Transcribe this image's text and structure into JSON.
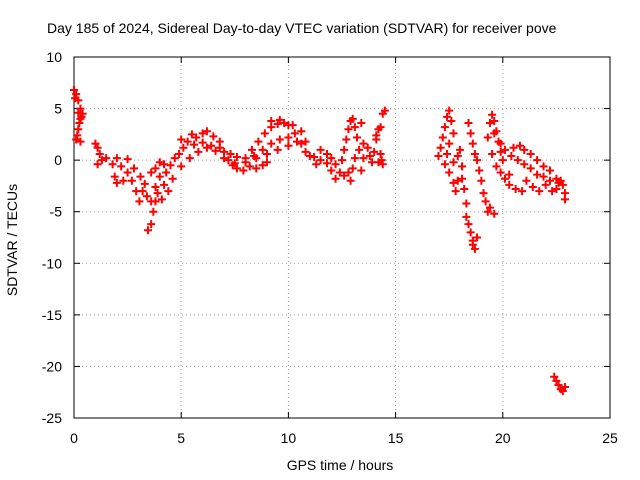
{
  "chart_data": {
    "type": "scatter",
    "title": "Day 185 of 2024, Sidereal Day-to-day VTEC variation (SDTVAR) for receiver pove",
    "xlabel": "GPS time / hours",
    "ylabel": "SDTVAR / TECUs",
    "xlim": [
      0,
      25
    ],
    "ylim": [
      -25,
      10
    ],
    "xticks": [
      "0",
      "5",
      "10",
      "15",
      "20",
      "25"
    ],
    "yticks": [
      "10",
      "5",
      "0",
      "-5",
      "-10",
      "-15",
      "-20",
      "-25"
    ],
    "grid": true,
    "marker": "plus",
    "series": [
      {
        "name": "SDTVAR",
        "color": "#ff0000",
        "points": [
          [
            0.0,
            6.8
          ],
          [
            0.1,
            6.4
          ],
          [
            0.2,
            5.8
          ],
          [
            0.3,
            5.0
          ],
          [
            0.35,
            4.2
          ],
          [
            0.25,
            3.6
          ],
          [
            0.2,
            3.0
          ],
          [
            0.15,
            2.4
          ],
          [
            0.1,
            2.0
          ],
          [
            0.3,
            1.8
          ],
          [
            0.05,
            6.0
          ],
          [
            0.2,
            4.6
          ],
          [
            0.4,
            4.5
          ],
          [
            0.3,
            4.0
          ],
          [
            1.0,
            1.6
          ],
          [
            1.1,
            1.2
          ],
          [
            1.2,
            0.6
          ],
          [
            1.3,
            0.0
          ],
          [
            1.1,
            -0.4
          ],
          [
            1.5,
            0.2
          ],
          [
            1.8,
            -0.4
          ],
          [
            2.0,
            0.2
          ],
          [
            2.2,
            -0.6
          ],
          [
            2.5,
            -1.2
          ],
          [
            2.7,
            -2.0
          ],
          [
            2.9,
            -3.0
          ],
          [
            3.05,
            -4.0
          ],
          [
            3.2,
            -3.0
          ],
          [
            3.4,
            -3.5
          ],
          [
            2.3,
            -2.0
          ],
          [
            2.0,
            -2.2
          ],
          [
            1.9,
            -1.6
          ],
          [
            2.5,
            0.1
          ],
          [
            2.8,
            -0.8
          ],
          [
            3.1,
            -1.6
          ],
          [
            3.3,
            -2.3
          ],
          [
            3.45,
            -6.8
          ],
          [
            3.6,
            -6.2
          ],
          [
            3.7,
            -5.0
          ],
          [
            3.8,
            -4.0
          ],
          [
            3.9,
            -3.2
          ],
          [
            3.6,
            -4.0
          ],
          [
            3.8,
            -2.6
          ],
          [
            4.0,
            -1.6
          ],
          [
            4.2,
            -2.4
          ],
          [
            4.3,
            -1.2
          ],
          [
            4.5,
            -0.5
          ],
          [
            4.7,
            0.2
          ],
          [
            4.9,
            0.6
          ],
          [
            5.1,
            1.2
          ],
          [
            5.3,
            1.8
          ],
          [
            5.5,
            2.5
          ],
          [
            5.7,
            2.2
          ],
          [
            6.0,
            2.6
          ],
          [
            6.2,
            2.8
          ],
          [
            6.5,
            2.3
          ],
          [
            6.8,
            1.8
          ],
          [
            7.0,
            0.8
          ],
          [
            7.2,
            0.0
          ],
          [
            7.4,
            -0.5
          ],
          [
            7.6,
            -0.8
          ],
          [
            7.9,
            -1.0
          ],
          [
            8.2,
            -0.6
          ],
          [
            8.5,
            -0.8
          ],
          [
            8.8,
            -0.5
          ],
          [
            9.0,
            -0.2
          ],
          [
            4.1,
            -3.8
          ],
          [
            4.4,
            -3.0
          ],
          [
            4.6,
            -1.8
          ],
          [
            5.0,
            -0.6
          ],
          [
            5.4,
            0.2
          ],
          [
            5.8,
            0.8
          ],
          [
            6.2,
            1.2
          ],
          [
            6.6,
            0.9
          ],
          [
            7.0,
            0.2
          ],
          [
            7.5,
            -0.3
          ],
          [
            3.6,
            -1.2
          ],
          [
            3.8,
            -0.8
          ],
          [
            4.0,
            -0.2
          ],
          [
            4.2,
            -0.4
          ],
          [
            5.0,
            2.0
          ],
          [
            5.6,
            1.5
          ],
          [
            6.0,
            1.7
          ],
          [
            6.4,
            1.4
          ],
          [
            6.8,
            1.2
          ],
          [
            7.3,
            0.6
          ],
          [
            7.6,
            0.3
          ],
          [
            8.0,
            0.2
          ],
          [
            8.3,
            1.0
          ],
          [
            8.6,
            1.8
          ],
          [
            8.9,
            2.6
          ],
          [
            9.2,
            3.2
          ],
          [
            9.5,
            3.5
          ],
          [
            9.8,
            3.6
          ],
          [
            10.0,
            3.4
          ],
          [
            10.3,
            2.6
          ],
          [
            10.6,
            1.6
          ],
          [
            10.8,
            0.8
          ],
          [
            11.0,
            0.4
          ],
          [
            11.2,
            0.3
          ],
          [
            11.5,
            0.0
          ],
          [
            11.8,
            -0.3
          ],
          [
            12.0,
            -1.0
          ],
          [
            12.2,
            -1.8
          ],
          [
            12.4,
            -1.2
          ],
          [
            8.0,
            -0.2
          ],
          [
            8.4,
            0.4
          ],
          [
            8.8,
            1.0
          ],
          [
            9.2,
            1.6
          ],
          [
            9.6,
            2.0
          ],
          [
            10.0,
            2.2
          ],
          [
            10.4,
            1.8
          ],
          [
            9.2,
            3.8
          ],
          [
            9.6,
            3.9
          ],
          [
            10.2,
            3.4
          ],
          [
            10.6,
            2.8
          ],
          [
            10.8,
            1.8
          ],
          [
            8.5,
            0.2
          ],
          [
            9.0,
            0.6
          ],
          [
            9.5,
            1.0
          ],
          [
            10.0,
            1.4
          ],
          [
            11.5,
            1.0
          ],
          [
            11.8,
            0.6
          ],
          [
            12.0,
            0.2
          ],
          [
            12.2,
            -0.4
          ],
          [
            11.3,
            -0.4
          ],
          [
            12.5,
            0.0
          ],
          [
            12.6,
            1.0
          ],
          [
            12.7,
            2.0
          ],
          [
            12.8,
            3.0
          ],
          [
            12.9,
            3.8
          ],
          [
            13.0,
            4.0
          ],
          [
            13.1,
            3.2
          ],
          [
            13.2,
            2.2
          ],
          [
            13.3,
            1.0
          ],
          [
            13.1,
            0.2
          ],
          [
            12.8,
            -1.2
          ],
          [
            12.9,
            -2.0
          ],
          [
            13.0,
            -0.8
          ],
          [
            12.6,
            -1.5
          ],
          [
            13.4,
            3.6
          ],
          [
            13.4,
            -1.0
          ],
          [
            13.5,
            0.2
          ],
          [
            13.5,
            1.6
          ],
          [
            13.7,
            1.2
          ],
          [
            13.8,
            0.4
          ],
          [
            13.9,
            -0.2
          ],
          [
            14.0,
            0.8
          ],
          [
            14.1,
            2.0
          ],
          [
            14.2,
            3.0
          ],
          [
            14.3,
            3.2
          ],
          [
            14.1,
            2.4
          ],
          [
            14.3,
            0.6
          ],
          [
            14.4,
            -0.4
          ],
          [
            14.5,
            4.8
          ],
          [
            14.4,
            4.5
          ],
          [
            14.35,
            0.0
          ],
          [
            14.2,
            -0.2
          ],
          [
            17.0,
            0.4
          ],
          [
            17.1,
            1.2
          ],
          [
            17.2,
            2.2
          ],
          [
            17.3,
            3.2
          ],
          [
            17.4,
            4.2
          ],
          [
            17.5,
            4.8
          ],
          [
            17.6,
            3.8
          ],
          [
            17.7,
            2.6
          ],
          [
            17.5,
            1.6
          ],
          [
            17.4,
            0.6
          ],
          [
            17.3,
            -0.4
          ],
          [
            17.5,
            -1.2
          ],
          [
            17.7,
            -2.2
          ],
          [
            17.8,
            -3.0
          ],
          [
            17.7,
            -0.2
          ],
          [
            17.9,
            0.4
          ],
          [
            18.0,
            1.0
          ],
          [
            18.1,
            -0.6
          ],
          [
            17.9,
            -2.0
          ],
          [
            18.1,
            -1.8
          ],
          [
            18.2,
            -2.8
          ],
          [
            18.3,
            -4.2
          ],
          [
            18.3,
            -5.5
          ],
          [
            18.4,
            -6.2
          ],
          [
            18.5,
            -7.0
          ],
          [
            18.6,
            -7.8
          ],
          [
            18.7,
            -8.6
          ],
          [
            18.6,
            -8.2
          ],
          [
            18.8,
            -7.5
          ],
          [
            18.4,
            3.6
          ],
          [
            18.5,
            2.6
          ],
          [
            18.6,
            1.6
          ],
          [
            18.7,
            0.6
          ],
          [
            18.8,
            0.0
          ],
          [
            18.9,
            -1.0
          ],
          [
            19.0,
            -2.0
          ],
          [
            19.1,
            -3.2
          ],
          [
            19.2,
            -4.0
          ],
          [
            19.3,
            -5.0
          ],
          [
            19.4,
            -4.6
          ],
          [
            19.6,
            -5.2
          ],
          [
            19.3,
            2.2
          ],
          [
            19.4,
            3.6
          ],
          [
            19.5,
            4.4
          ],
          [
            19.6,
            3.8
          ],
          [
            19.7,
            2.8
          ],
          [
            19.8,
            1.8
          ],
          [
            19.9,
            0.8
          ],
          [
            20.0,
            0.0
          ],
          [
            19.5,
            0.6
          ],
          [
            19.7,
            -0.6
          ],
          [
            19.9,
            -1.2
          ],
          [
            20.1,
            -1.8
          ],
          [
            20.3,
            -1.4
          ],
          [
            19.6,
            2.6
          ],
          [
            19.9,
            1.6
          ],
          [
            20.1,
            1.0
          ],
          [
            20.4,
            0.4
          ],
          [
            20.7,
            0.0
          ],
          [
            21.0,
            -0.4
          ],
          [
            21.3,
            -0.8
          ],
          [
            21.6,
            -1.4
          ],
          [
            21.9,
            -1.6
          ],
          [
            22.2,
            -2.0
          ],
          [
            20.3,
            -2.4
          ],
          [
            20.6,
            -2.8
          ],
          [
            20.9,
            -3.0
          ],
          [
            21.1,
            -2.0
          ],
          [
            21.4,
            -2.6
          ],
          [
            21.7,
            -3.0
          ],
          [
            22.0,
            -2.4
          ],
          [
            22.3,
            -3.0
          ],
          [
            22.6,
            -2.2
          ],
          [
            22.9,
            -3.2
          ],
          [
            20.5,
            1.2
          ],
          [
            20.8,
            1.4
          ],
          [
            21.0,
            1.0
          ],
          [
            21.3,
            0.6
          ],
          [
            21.6,
            0.0
          ],
          [
            21.9,
            -0.6
          ],
          [
            22.2,
            -1.0
          ],
          [
            22.5,
            -1.8
          ],
          [
            22.8,
            -2.4
          ],
          [
            22.9,
            -3.8
          ],
          [
            22.5,
            -2.8
          ],
          [
            22.7,
            -2.0
          ],
          [
            22.4,
            -21.0
          ],
          [
            22.5,
            -21.4
          ],
          [
            22.6,
            -21.8
          ],
          [
            22.7,
            -22.2
          ],
          [
            22.8,
            -22.4
          ],
          [
            22.9,
            -22.0
          ]
        ]
      }
    ]
  }
}
